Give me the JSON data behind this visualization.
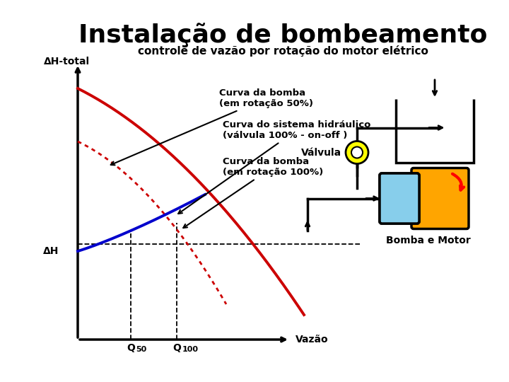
{
  "title": "Instalação de bombeamento",
  "subtitle": "controle de vazão por rotação do motor elétrico",
  "ylabel": "ΔH-total",
  "dh_label": "ΔH",
  "xlabel_vazao": "Vazão",
  "q50_label": "Q",
  "q50_sub": "50",
  "q100_label": "Q",
  "q100_sub": "100",
  "annotation_bomba50": "Curva da bomba\n(em rotação 50%)",
  "annotation_hidraulico": "Curva do sistema hidráulico\n(válvula 100% - on-off )",
  "annotation_bomba100": "Curva da bomba\n(em rotação 100%)",
  "label_valvula": "Válvula",
  "label_bomba_motor": "Bomba e Motor",
  "bg": "#ffffff",
  "red": "#cc0000",
  "blue": "#0000cc",
  "black": "#000000"
}
